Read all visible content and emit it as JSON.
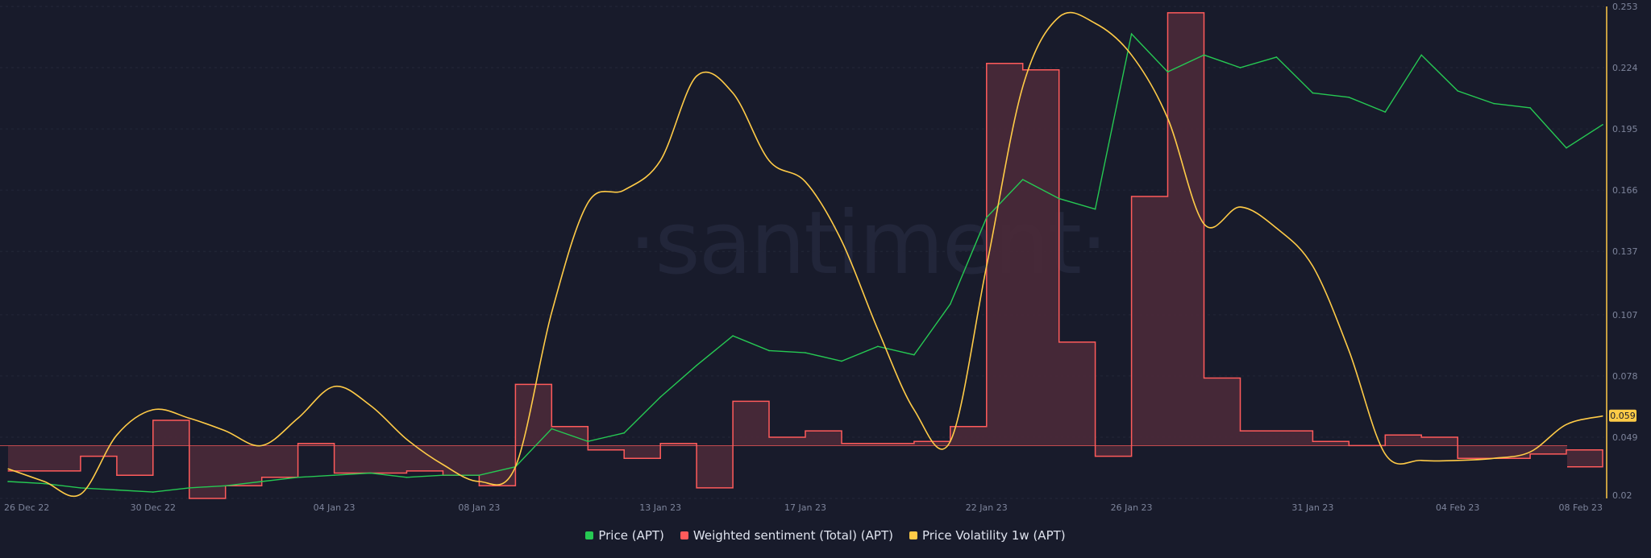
{
  "watermark": "·santiment·",
  "colors": {
    "background": "#181b2b",
    "price": "#26c953",
    "sentiment": "#ff5b5b",
    "sentiment_fill": "#4a2a38",
    "volatility": "#ffcb47",
    "grid": "#232738"
  },
  "legend": [
    {
      "label": "Price (APT)",
      "color": "#26c953"
    },
    {
      "label": "Weighted sentiment (Total) (APT)",
      "color": "#ff5b5b"
    },
    {
      "label": "Price Volatility 1w (APT)",
      "color": "#ffcb47"
    }
  ],
  "current_value_badge": "0.059",
  "chart_data": {
    "type": "line",
    "title": "",
    "x_ticks": [
      "26 Dec 22",
      "30 Dec 22",
      "04 Jan 23",
      "08 Jan 23",
      "13 Jan 23",
      "17 Jan 23",
      "22 Jan 23",
      "26 Jan 23",
      "31 Jan 23",
      "04 Feb 23",
      "08 Feb 23"
    ],
    "y_ticks": [
      "0.02",
      "0.049",
      "0.078",
      "0.107",
      "0.137",
      "0.166",
      "0.195",
      "0.224",
      "0.253"
    ],
    "ylim": [
      0.02,
      0.253
    ],
    "xlim": [
      "26 Dec 22",
      "08 Feb 23"
    ],
    "grid": true,
    "legend_position": "bottom",
    "series": [
      {
        "name": "Price (APT)",
        "type": "line",
        "points": [
          {
            "x": "26 Dec 22",
            "y": 0.028
          },
          {
            "x": "27 Dec 22",
            "y": 0.027
          },
          {
            "x": "28 Dec 22",
            "y": 0.025
          },
          {
            "x": "29 Dec 22",
            "y": 0.024
          },
          {
            "x": "30 Dec 22",
            "y": 0.023
          },
          {
            "x": "31 Dec 22",
            "y": 0.025
          },
          {
            "x": "01 Jan 23",
            "y": 0.026
          },
          {
            "x": "02 Jan 23",
            "y": 0.028
          },
          {
            "x": "03 Jan 23",
            "y": 0.03
          },
          {
            "x": "04 Jan 23",
            "y": 0.031
          },
          {
            "x": "05 Jan 23",
            "y": 0.032
          },
          {
            "x": "06 Jan 23",
            "y": 0.03
          },
          {
            "x": "07 Jan 23",
            "y": 0.031
          },
          {
            "x": "08 Jan 23",
            "y": 0.031
          },
          {
            "x": "09 Jan 23",
            "y": 0.035
          },
          {
            "x": "10 Jan 23",
            "y": 0.053
          },
          {
            "x": "11 Jan 23",
            "y": 0.047
          },
          {
            "x": "12 Jan 23",
            "y": 0.051
          },
          {
            "x": "13 Jan 23",
            "y": 0.068
          },
          {
            "x": "14 Jan 23",
            "y": 0.083
          },
          {
            "x": "15 Jan 23",
            "y": 0.097
          },
          {
            "x": "16 Jan 23",
            "y": 0.09
          },
          {
            "x": "17 Jan 23",
            "y": 0.089
          },
          {
            "x": "18 Jan 23",
            "y": 0.085
          },
          {
            "x": "19 Jan 23",
            "y": 0.092
          },
          {
            "x": "20 Jan 23",
            "y": 0.088
          },
          {
            "x": "21 Jan 23",
            "y": 0.112
          },
          {
            "x": "22 Jan 23",
            "y": 0.153
          },
          {
            "x": "23 Jan 23",
            "y": 0.171
          },
          {
            "x": "24 Jan 23",
            "y": 0.162
          },
          {
            "x": "25 Jan 23",
            "y": 0.157
          },
          {
            "x": "26 Jan 23",
            "y": 0.24
          },
          {
            "x": "27 Jan 23",
            "y": 0.222
          },
          {
            "x": "28 Jan 23",
            "y": 0.23
          },
          {
            "x": "29 Jan 23",
            "y": 0.224
          },
          {
            "x": "30 Jan 23",
            "y": 0.229
          },
          {
            "x": "31 Jan 23",
            "y": 0.212
          },
          {
            "x": "01 Feb 23",
            "y": 0.21
          },
          {
            "x": "02 Feb 23",
            "y": 0.203
          },
          {
            "x": "03 Feb 23",
            "y": 0.23
          },
          {
            "x": "04 Feb 23",
            "y": 0.213
          },
          {
            "x": "05 Feb 23",
            "y": 0.207
          },
          {
            "x": "06 Feb 23",
            "y": 0.205
          },
          {
            "x": "07 Feb 23",
            "y": 0.186
          },
          {
            "x": "08 Feb 23",
            "y": 0.197
          }
        ]
      },
      {
        "name": "Weighted sentiment (Total) (APT)",
        "type": "step-area",
        "baseline": 0.045,
        "points": [
          {
            "x": "26 Dec 22",
            "y": 0.033
          },
          {
            "x": "28 Dec 22",
            "y": 0.04
          },
          {
            "x": "29 Dec 22",
            "y": 0.031
          },
          {
            "x": "30 Dec 22",
            "y": 0.057
          },
          {
            "x": "31 Dec 22",
            "y": 0.02
          },
          {
            "x": "01 Jan 23",
            "y": 0.026
          },
          {
            "x": "02 Jan 23",
            "y": 0.03
          },
          {
            "x": "03 Jan 23",
            "y": 0.046
          },
          {
            "x": "04 Jan 23",
            "y": 0.032
          },
          {
            "x": "06 Jan 23",
            "y": 0.033
          },
          {
            "x": "07 Jan 23",
            "y": 0.031
          },
          {
            "x": "08 Jan 23",
            "y": 0.026
          },
          {
            "x": "09 Jan 23",
            "y": 0.074
          },
          {
            "x": "10 Jan 23",
            "y": 0.054
          },
          {
            "x": "11 Jan 23",
            "y": 0.043
          },
          {
            "x": "12 Jan 23",
            "y": 0.039
          },
          {
            "x": "13 Jan 23",
            "y": 0.046
          },
          {
            "x": "14 Jan 23",
            "y": 0.025
          },
          {
            "x": "15 Jan 23",
            "y": 0.066
          },
          {
            "x": "16 Jan 23",
            "y": 0.049
          },
          {
            "x": "17 Jan 23",
            "y": 0.052
          },
          {
            "x": "18 Jan 23",
            "y": 0.046
          },
          {
            "x": "20 Jan 23",
            "y": 0.047
          },
          {
            "x": "21 Jan 23",
            "y": 0.054
          },
          {
            "x": "22 Jan 23",
            "y": 0.226
          },
          {
            "x": "23 Jan 23",
            "y": 0.223
          },
          {
            "x": "24 Jan 23",
            "y": 0.094
          },
          {
            "x": "25 Jan 23",
            "y": 0.04
          },
          {
            "x": "26 Jan 23",
            "y": 0.163
          },
          {
            "x": "27 Jan 23",
            "y": 0.25
          },
          {
            "x": "28 Jan 23",
            "y": 0.077
          },
          {
            "x": "29 Jan 23",
            "y": 0.052
          },
          {
            "x": "31 Jan 23",
            "y": 0.047
          },
          {
            "x": "01 Feb 23",
            "y": 0.045
          },
          {
            "x": "02 Feb 23",
            "y": 0.05
          },
          {
            "x": "03 Feb 23",
            "y": 0.049
          },
          {
            "x": "04 Feb 23",
            "y": 0.039
          },
          {
            "x": "06 Feb 23",
            "y": 0.041
          },
          {
            "x": "07 Feb 23",
            "y": 0.043
          },
          {
            "x": "08 Feb 23",
            "y": 0.035
          }
        ]
      },
      {
        "name": "Price Volatility 1w (APT)",
        "type": "line",
        "points": [
          {
            "x": "26 Dec 22",
            "y": 0.034
          },
          {
            "x": "27 Dec 22",
            "y": 0.028
          },
          {
            "x": "28 Dec 22",
            "y": 0.022
          },
          {
            "x": "29 Dec 22",
            "y": 0.05
          },
          {
            "x": "30 Dec 22",
            "y": 0.062
          },
          {
            "x": "31 Dec 22",
            "y": 0.058
          },
          {
            "x": "01 Jan 23",
            "y": 0.052
          },
          {
            "x": "02 Jan 23",
            "y": 0.045
          },
          {
            "x": "03 Jan 23",
            "y": 0.058
          },
          {
            "x": "04 Jan 23",
            "y": 0.073
          },
          {
            "x": "05 Jan 23",
            "y": 0.064
          },
          {
            "x": "06 Jan 23",
            "y": 0.048
          },
          {
            "x": "07 Jan 23",
            "y": 0.036
          },
          {
            "x": "08 Jan 23",
            "y": 0.028
          },
          {
            "x": "09 Jan 23",
            "y": 0.035
          },
          {
            "x": "10 Jan 23",
            "y": 0.108
          },
          {
            "x": "11 Jan 23",
            "y": 0.16
          },
          {
            "x": "12 Jan 23",
            "y": 0.166
          },
          {
            "x": "13 Jan 23",
            "y": 0.18
          },
          {
            "x": "14 Jan 23",
            "y": 0.22
          },
          {
            "x": "15 Jan 23",
            "y": 0.212
          },
          {
            "x": "16 Jan 23",
            "y": 0.18
          },
          {
            "x": "17 Jan 23",
            "y": 0.17
          },
          {
            "x": "18 Jan 23",
            "y": 0.142
          },
          {
            "x": "19 Jan 23",
            "y": 0.1
          },
          {
            "x": "20 Jan 23",
            "y": 0.062
          },
          {
            "x": "21 Jan 23",
            "y": 0.047
          },
          {
            "x": "22 Jan 23",
            "y": 0.13
          },
          {
            "x": "23 Jan 23",
            "y": 0.215
          },
          {
            "x": "24 Jan 23",
            "y": 0.248
          },
          {
            "x": "25 Jan 23",
            "y": 0.245
          },
          {
            "x": "26 Jan 23",
            "y": 0.23
          },
          {
            "x": "27 Jan 23",
            "y": 0.2
          },
          {
            "x": "28 Jan 23",
            "y": 0.15
          },
          {
            "x": "29 Jan 23",
            "y": 0.158
          },
          {
            "x": "30 Jan 23",
            "y": 0.148
          },
          {
            "x": "31 Jan 23",
            "y": 0.13
          },
          {
            "x": "01 Feb 23",
            "y": 0.09
          },
          {
            "x": "02 Feb 23",
            "y": 0.041
          },
          {
            "x": "03 Feb 23",
            "y": 0.038
          },
          {
            "x": "04 Feb 23",
            "y": 0.038
          },
          {
            "x": "05 Feb 23",
            "y": 0.039
          },
          {
            "x": "06 Feb 23",
            "y": 0.042
          },
          {
            "x": "07 Feb 23",
            "y": 0.055
          },
          {
            "x": "08 Feb 23",
            "y": 0.059
          }
        ]
      }
    ]
  }
}
